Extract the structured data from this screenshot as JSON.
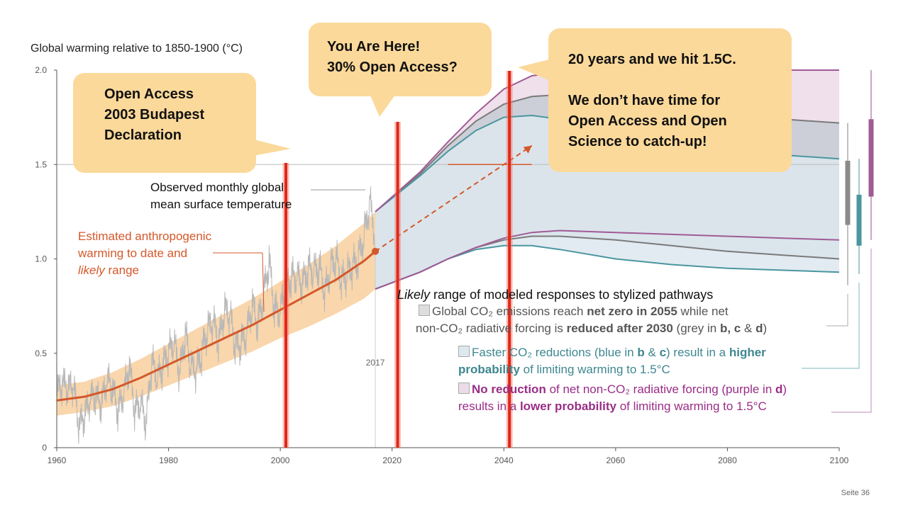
{
  "chart_data": {
    "type": "line",
    "title": "Global warming relative to 1850-1900 (°C)",
    "xlim": [
      1960,
      2100
    ],
    "ylim": [
      0,
      2.0
    ],
    "x_ticks": [
      "1960",
      "1980",
      "2000",
      "2020",
      "2040",
      "2060",
      "2080",
      "2100"
    ],
    "y_ticks": [
      "0",
      "0.5",
      "1.0",
      "1.5",
      "2.0"
    ],
    "reference_line": 1.5,
    "marker_year_label": "2017",
    "observed": {
      "label": "Observed monthly global mean surface temperature",
      "color": "#b8b8b8",
      "x": [
        1960,
        1961,
        1962,
        1963,
        1964,
        1965,
        1966,
        1967,
        1968,
        1969,
        1970,
        1971,
        1972,
        1973,
        1974,
        1975,
        1976,
        1977,
        1978,
        1979,
        1980,
        1981,
        1982,
        1983,
        1984,
        1985,
        1986,
        1987,
        1988,
        1989,
        1990,
        1991,
        1992,
        1993,
        1994,
        1995,
        1996,
        1997,
        1998,
        1999,
        2000,
        2001,
        2002,
        2003,
        2004,
        2005,
        2006,
        2007,
        2008,
        2009,
        2010,
        2011,
        2012,
        2013,
        2014,
        2015,
        2016,
        2017
      ],
      "y": [
        0.28,
        0.33,
        0.3,
        0.32,
        0.1,
        0.16,
        0.25,
        0.26,
        0.22,
        0.35,
        0.3,
        0.18,
        0.28,
        0.42,
        0.18,
        0.23,
        0.12,
        0.45,
        0.36,
        0.42,
        0.5,
        0.55,
        0.38,
        0.6,
        0.42,
        0.4,
        0.5,
        0.62,
        0.66,
        0.55,
        0.72,
        0.7,
        0.52,
        0.55,
        0.6,
        0.75,
        0.65,
        0.8,
        0.98,
        0.72,
        0.72,
        0.85,
        0.9,
        0.9,
        0.86,
        0.95,
        0.93,
        0.95,
        0.82,
        0.95,
        1.0,
        0.88,
        0.92,
        0.96,
        1.0,
        1.12,
        1.3,
        1.12
      ]
    },
    "anthropogenic": {
      "label": "Estimated anthropogenic warming to date and likely range",
      "color": "#d4582a",
      "band_color": "#f7c890",
      "x": [
        1960,
        1965,
        1970,
        1975,
        1980,
        1985,
        1990,
        1995,
        2000,
        2005,
        2010,
        2015,
        2017
      ],
      "y": [
        0.25,
        0.27,
        0.31,
        0.37,
        0.44,
        0.51,
        0.58,
        0.65,
        0.73,
        0.81,
        0.89,
        0.99,
        1.04
      ],
      "low": [
        0.17,
        0.19,
        0.22,
        0.27,
        0.33,
        0.39,
        0.45,
        0.51,
        0.58,
        0.64,
        0.71,
        0.79,
        0.84
      ],
      "high": [
        0.33,
        0.35,
        0.4,
        0.47,
        0.55,
        0.63,
        0.71,
        0.79,
        0.88,
        0.97,
        1.07,
        1.19,
        1.25
      ]
    },
    "pathways": [
      {
        "name": "grey",
        "color": "#7a7a7a",
        "fill": "#c5cbd3",
        "x": [
          2017,
          2025,
          2030,
          2035,
          2040,
          2045,
          2050,
          2060,
          2070,
          2080,
          2090,
          2100
        ],
        "low": [
          0.84,
          0.93,
          1.0,
          1.06,
          1.1,
          1.12,
          1.12,
          1.1,
          1.07,
          1.04,
          1.02,
          1.0
        ],
        "high": [
          1.25,
          1.45,
          1.6,
          1.73,
          1.82,
          1.86,
          1.87,
          1.84,
          1.8,
          1.77,
          1.74,
          1.72
        ]
      },
      {
        "name": "blue",
        "color": "#4a96a0",
        "fill": "#dde8ef",
        "x": [
          2017,
          2025,
          2030,
          2035,
          2040,
          2045,
          2050,
          2060,
          2070,
          2080,
          2090,
          2100
        ],
        "low": [
          0.84,
          0.93,
          1.0,
          1.05,
          1.07,
          1.07,
          1.05,
          1.0,
          0.97,
          0.95,
          0.94,
          0.93
        ],
        "high": [
          1.25,
          1.44,
          1.57,
          1.68,
          1.75,
          1.76,
          1.74,
          1.68,
          1.62,
          1.58,
          1.55,
          1.53
        ]
      },
      {
        "name": "purple",
        "color": "#a05a95",
        "fill": "#ecdbe8",
        "x": [
          2017,
          2025,
          2030,
          2035,
          2040,
          2045,
          2050,
          2060,
          2070,
          2080,
          2090,
          2100
        ],
        "low": [
          0.84,
          0.93,
          1.0,
          1.06,
          1.11,
          1.14,
          1.15,
          1.14,
          1.13,
          1.12,
          1.11,
          1.1
        ],
        "high": [
          1.25,
          1.46,
          1.62,
          1.77,
          1.9,
          1.97,
          1.99,
          2.0,
          2.0,
          2.0,
          2.0,
          2.0
        ]
      }
    ],
    "range_bars": [
      {
        "color": "#8a8a8a",
        "whisker": [
          0.86,
          1.72
        ],
        "box": [
          1.18,
          1.52
        ]
      },
      {
        "color": "#4a96a0",
        "whisker": [
          0.92,
          1.53
        ],
        "box": [
          1.07,
          1.34
        ]
      },
      {
        "color": "#a05a95",
        "whisker": [
          1.1,
          2.0
        ],
        "box": [
          1.33,
          1.74
        ]
      }
    ],
    "highlight_years": [
      2001,
      2021,
      2041
    ],
    "projection_arrow": {
      "from": [
        2017,
        1.04
      ],
      "to": [
        2045,
        1.6
      ]
    }
  },
  "callouts": {
    "budapest": [
      "Open Access",
      "2003 Budapest",
      "Declaration"
    ],
    "here": [
      "You Are Here!",
      "30%  Open Access?"
    ],
    "years": [
      "20 years and we hit 1.5C.",
      "",
      "We don’t have time for",
      "Open Access and Open",
      "Science to catch-up!"
    ]
  },
  "labels": {
    "observed": [
      "Observed monthly global",
      "mean surface temperature"
    ],
    "anthro_1": "Estimated anthropogenic",
    "anthro_2": "warming to date and",
    "anthro_3_italic": "likely",
    "anthro_3_rest": " range"
  },
  "legend": {
    "title_italic": "Likely",
    "title_rest": " range of modeled responses to stylized pathways",
    "grey_1a": "Global CO₂ emissions reach ",
    "grey_1b": "net zero in 2055",
    "grey_1c": " while net",
    "grey_2a": "non-CO₂ radiative forcing is ",
    "grey_2b": "reduced after 2030",
    "grey_2c": " (grey in ",
    "grey_2d": "b, c",
    "grey_2e": " & ",
    "grey_2f": "d",
    "grey_2g": ")",
    "blue_1a": "Faster CO₂ reductions (blue in ",
    "blue_1b": "b",
    "blue_1c": " & ",
    "blue_1d": "c",
    "blue_1e": ") result in a ",
    "blue_1f": "higher",
    "blue_2a": "probability",
    "blue_2b": " of limiting warming to 1.5°C",
    "purple_1a": "No reduction",
    "purple_1b": " of net non-CO₂ radiative forcing (purple in ",
    "purple_1c": "d",
    "purple_1d": ")",
    "purple_2a": "results in a ",
    "purple_2b": "lower probability",
    "purple_2c": " of limiting warming to 1.5°C"
  },
  "footer": {
    "page": "Seite 36"
  }
}
